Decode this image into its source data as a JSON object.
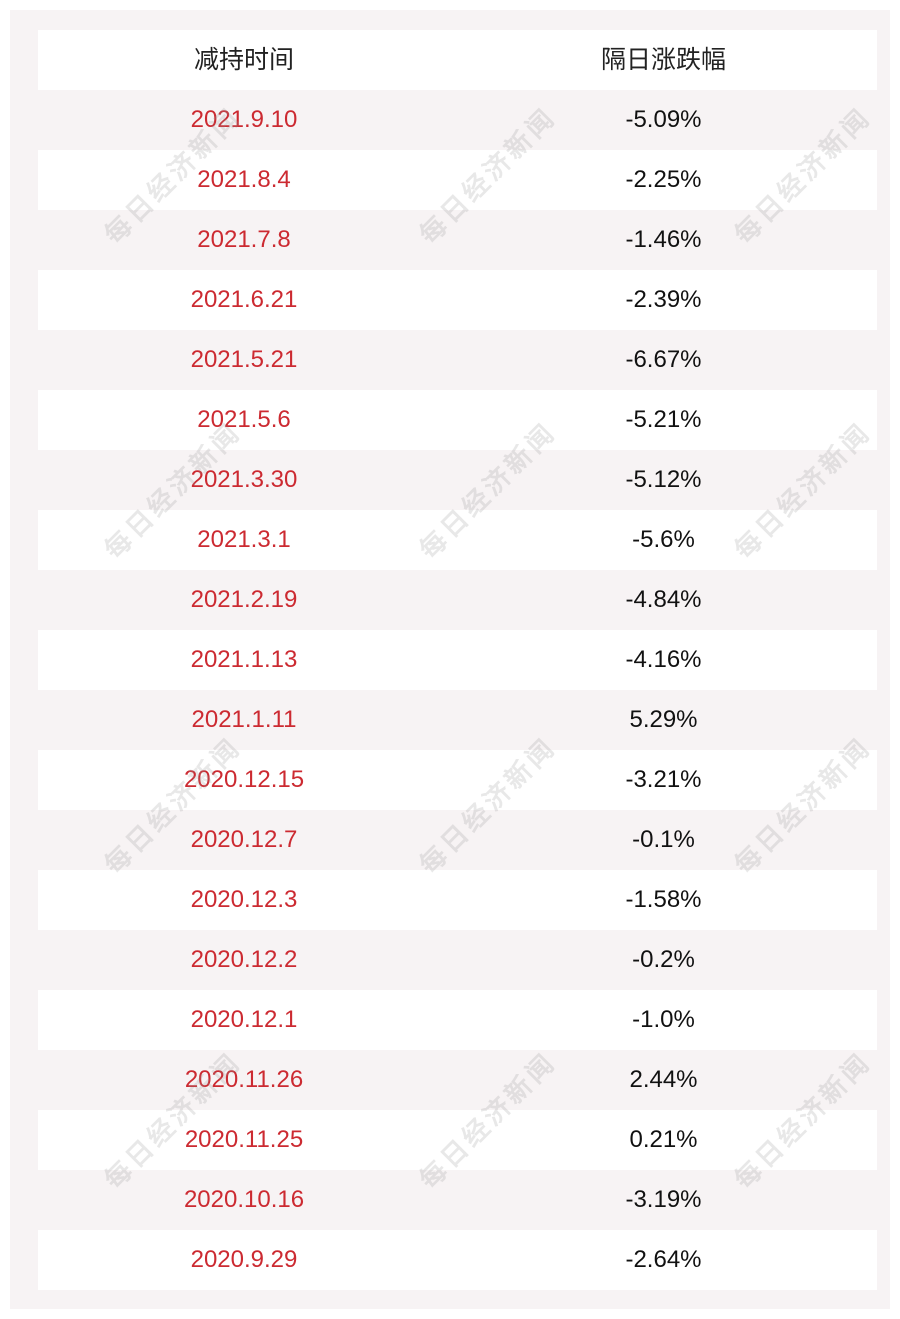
{
  "table": {
    "headers": [
      "减持时间",
      "隔日涨跌幅"
    ],
    "rows": [
      {
        "date": "2021.9.10",
        "change": "-5.09%"
      },
      {
        "date": "2021.8.4",
        "change": "-2.25%"
      },
      {
        "date": "2021.7.8",
        "change": "-1.46%"
      },
      {
        "date": "2021.6.21",
        "change": "-2.39%"
      },
      {
        "date": "2021.5.21",
        "change": "-6.67%"
      },
      {
        "date": "2021.5.6",
        "change": "-5.21%"
      },
      {
        "date": "2021.3.30",
        "change": "-5.12%"
      },
      {
        "date": "2021.3.1",
        "change": "-5.6%"
      },
      {
        "date": "2021.2.19",
        "change": "-4.84%"
      },
      {
        "date": "2021.1.13",
        "change": "-4.16%"
      },
      {
        "date": "2021.1.11",
        "change": "5.29%"
      },
      {
        "date": "2020.12.15",
        "change": "-3.21%"
      },
      {
        "date": "2020.12.7",
        "change": "-0.1%"
      },
      {
        "date": "2020.12.3",
        "change": "-1.58%"
      },
      {
        "date": "2020.12.2",
        "change": "-0.2%"
      },
      {
        "date": "2020.12.1",
        "change": "-1.0%"
      },
      {
        "date": "2020.11.26",
        "change": "2.44%"
      },
      {
        "date": "2020.11.25",
        "change": "0.21%"
      },
      {
        "date": "2020.10.16",
        "change": "-3.19%"
      },
      {
        "date": "2020.9.29",
        "change": "-2.64%"
      }
    ]
  },
  "watermark": {
    "text": "每日经济新闻"
  },
  "colors": {
    "date_text": "#cc2a31",
    "value_text": "#111111",
    "panel_background": "#f7f3f4"
  }
}
